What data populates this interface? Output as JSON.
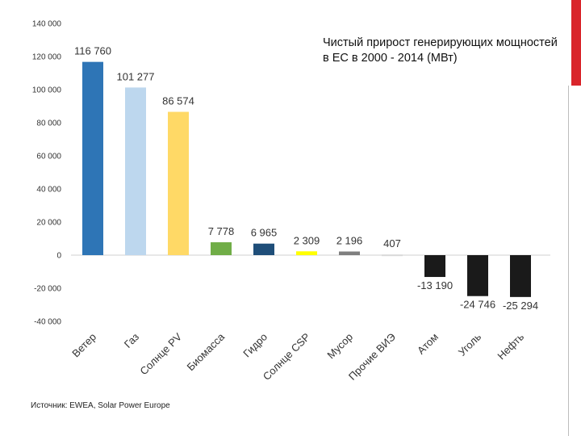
{
  "title": "Чистый прирост генерирующих мощностей в ЕС в 2000 - 2014 (МВт)",
  "source": "Источник: EWEA, Solar Power Europe",
  "colors": {
    "accent": "#d9252b"
  },
  "chart_data": {
    "type": "bar",
    "title": "Чистый прирост генерирующих мощностей в ЕС в 2000 - 2014 (МВт)",
    "xlabel": "",
    "ylabel": "",
    "ylim": [
      -40000,
      140000
    ],
    "yticks": [
      140000,
      120000,
      100000,
      80000,
      60000,
      40000,
      20000,
      0,
      -20000,
      -40000
    ],
    "ytick_labels": [
      "140 000",
      "120 000",
      "100 000",
      "80 000",
      "60 000",
      "40 000",
      "20 000",
      "0",
      "-20 000",
      "-40 000"
    ],
    "grid": false,
    "categories": [
      "Ветер",
      "Газ",
      "Солнце PV",
      "Биомасса",
      "Гидро",
      "Солнце CSP",
      "Мусор",
      "Прочие ВИЭ",
      "Атом",
      "Уголь",
      "Нефть"
    ],
    "values": [
      116760,
      101277,
      86574,
      7778,
      6965,
      2309,
      2196,
      407,
      -13190,
      -24746,
      -25294
    ],
    "value_labels": [
      "116 760",
      "101 277",
      "86 574",
      "7 778",
      "6 965",
      "2 309",
      "2 196",
      "407",
      "-13 190",
      "-24 746",
      "-25 294"
    ],
    "colors": [
      "#2e75b6",
      "#bdd7ee",
      "#ffd966",
      "#70ad47",
      "#1f4e79",
      "#ffff00",
      "#7f7f7f",
      "#d9d9d9",
      "#1a1a1a",
      "#1a1a1a",
      "#1a1a1a"
    ]
  }
}
